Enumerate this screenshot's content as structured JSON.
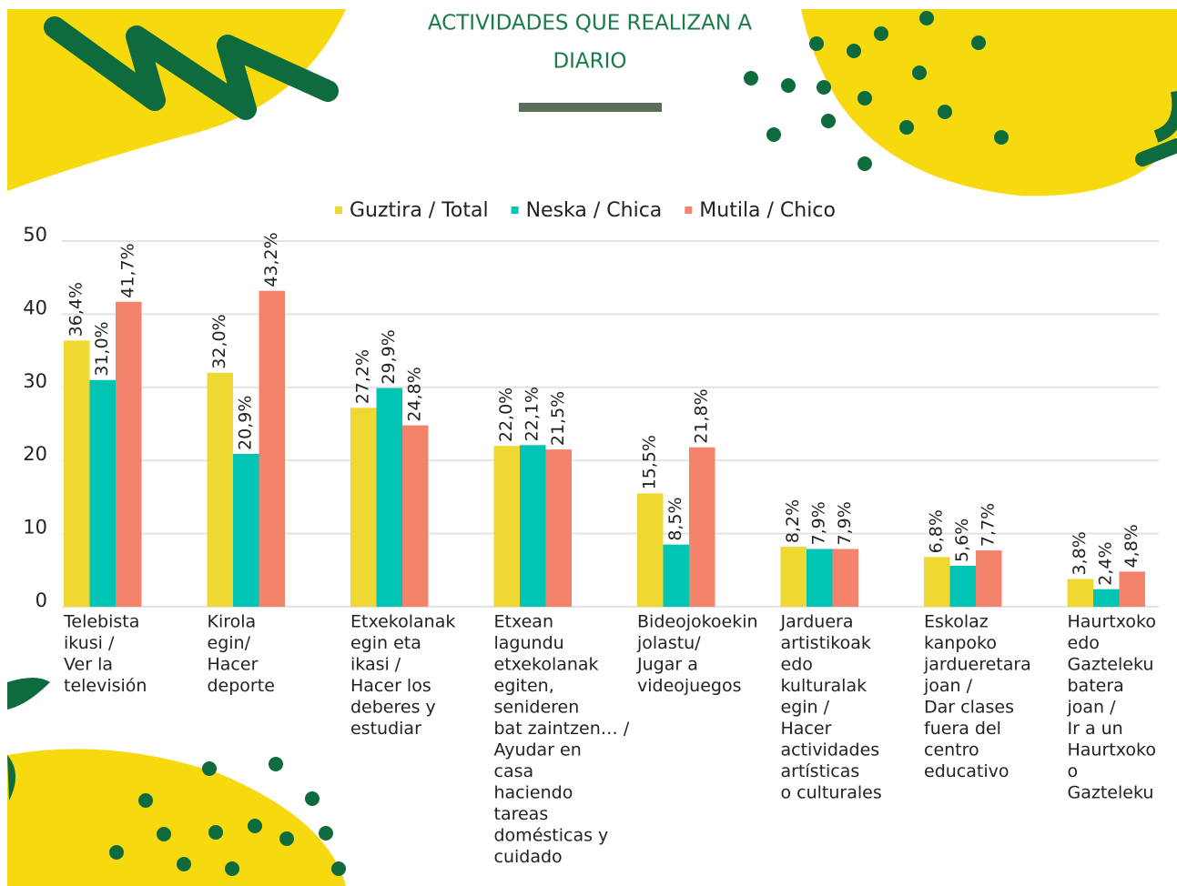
{
  "chart_data": {
    "type": "bar",
    "title": [
      "ACTIVIDADES QUE REALIZAN A",
      "DIARIO"
    ],
    "categories": [
      [
        "Telebista",
        "ikusi /",
        "Ver la",
        "televisión"
      ],
      [
        "Kirola",
        "egin/",
        "Hacer",
        "deporte"
      ],
      [
        "Etxekolanak",
        "egin eta",
        "ikasi /",
        "Hacer los",
        "deberes y",
        "estudiar"
      ],
      [
        "Etxean",
        "lagundu",
        "etxekolanak",
        "egiten,",
        "senideren",
        "bat zaintzen… /",
        "Ayudar en",
        "casa",
        "haciendo",
        "tareas",
        "domésticas y",
        "cuidado"
      ],
      [
        "Bideojokoekin",
        "jolastu/",
        "Jugar a",
        "videojuegos"
      ],
      [
        "Jarduera",
        "artistikoak",
        "edo",
        "kulturalak",
        "egin /",
        "Hacer",
        "actividades",
        "artísticas",
        "o culturales"
      ],
      [
        "Eskolaz",
        "kanpoko",
        "jardueretara",
        "joan /",
        "Dar clases",
        "fuera del",
        "centro",
        "educativo"
      ],
      [
        "Haurtxoko",
        "edo",
        "Gazteleku",
        "batera",
        "joan /",
        "Ir a un",
        "Haurtxoko",
        "o",
        "Gazteleku"
      ]
    ],
    "series": [
      {
        "name": "Guztira / Total",
        "color": "#f0d832",
        "values": [
          36.4,
          32.0,
          27.2,
          22.0,
          15.5,
          8.2,
          6.8,
          3.8
        ],
        "value_labels": [
          "36,4%",
          "32,0%",
          "27,2%",
          "22,0%",
          "15,5%",
          "8,2%",
          "6,8%",
          "3,8%"
        ]
      },
      {
        "name": "Neska / Chica",
        "color": "#00c4b4",
        "values": [
          31.0,
          20.9,
          29.9,
          22.1,
          8.5,
          7.9,
          5.6,
          2.4
        ],
        "value_labels": [
          "31,0%",
          "20,9%",
          "29,9%",
          "22,1%",
          "8,5%",
          "7,9%",
          "5,6%",
          "2,4%"
        ]
      },
      {
        "name": "Mutila / Chico",
        "color": "#f4836b",
        "values": [
          41.7,
          43.2,
          24.8,
          21.5,
          21.8,
          7.9,
          7.7,
          4.8
        ],
        "value_labels": [
          "41,7%",
          "43,2%",
          "24,8%",
          "21,5%",
          "21,8%",
          "7,9%",
          "7,7%",
          "4,8%"
        ]
      }
    ],
    "ylim": [
      0,
      50
    ],
    "yticks": [
      0,
      10,
      20,
      30,
      40,
      50
    ],
    "grid": true,
    "legend": "top"
  }
}
